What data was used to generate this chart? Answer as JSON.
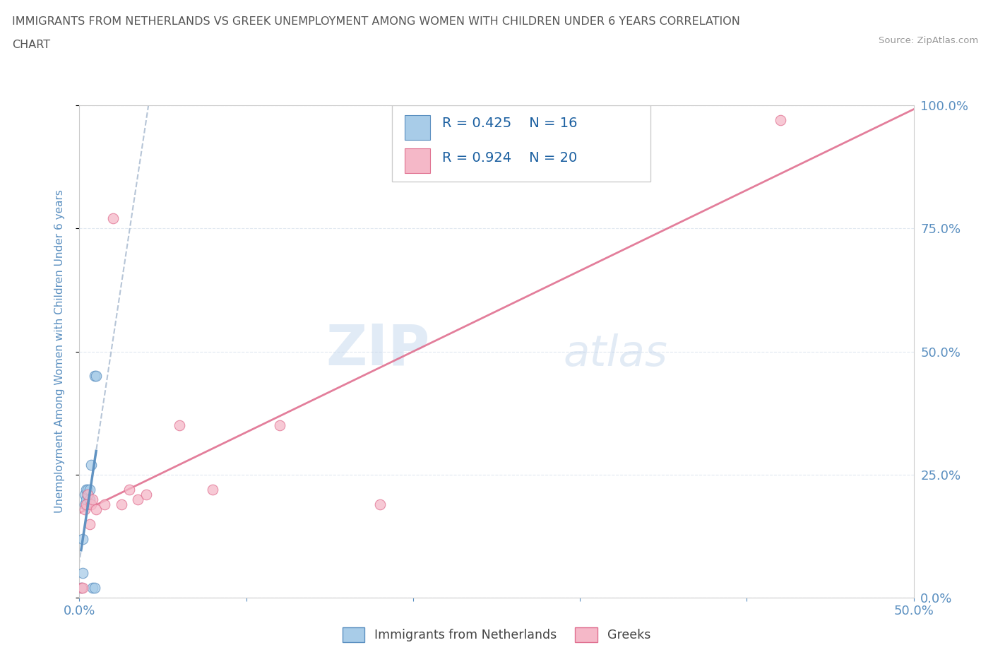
{
  "title_line1": "IMMIGRANTS FROM NETHERLANDS VS GREEK UNEMPLOYMENT AMONG WOMEN WITH CHILDREN UNDER 6 YEARS CORRELATION",
  "title_line2": "CHART",
  "source_text": "Source: ZipAtlas.com",
  "ylabel": "Unemployment Among Women with Children Under 6 years",
  "xlim": [
    0,
    0.5
  ],
  "ylim": [
    0,
    1.0
  ],
  "xticks": [
    0.0,
    0.1,
    0.2,
    0.3,
    0.4,
    0.5
  ],
  "yticks": [
    0.0,
    0.25,
    0.5,
    0.75,
    1.0
  ],
  "xtick_labels": [
    "0.0%",
    "",
    "",
    "",
    "",
    "50.0%"
  ],
  "ytick_labels_right": [
    "0.0%",
    "25.0%",
    "50.0%",
    "75.0%",
    "100.0%"
  ],
  "blue_scatter_x": [
    0.001,
    0.002,
    0.002,
    0.003,
    0.003,
    0.004,
    0.004,
    0.005,
    0.005,
    0.006,
    0.006,
    0.007,
    0.008,
    0.009,
    0.009,
    0.01
  ],
  "blue_scatter_y": [
    0.02,
    0.05,
    0.12,
    0.19,
    0.21,
    0.2,
    0.22,
    0.21,
    0.22,
    0.2,
    0.22,
    0.27,
    0.02,
    0.02,
    0.45,
    0.45
  ],
  "pink_scatter_x": [
    0.001,
    0.002,
    0.003,
    0.004,
    0.005,
    0.006,
    0.007,
    0.008,
    0.01,
    0.015,
    0.02,
    0.025,
    0.03,
    0.035,
    0.04,
    0.06,
    0.08,
    0.12,
    0.18,
    0.42
  ],
  "pink_scatter_y": [
    0.02,
    0.02,
    0.18,
    0.19,
    0.21,
    0.15,
    0.19,
    0.2,
    0.18,
    0.19,
    0.77,
    0.19,
    0.22,
    0.2,
    0.21,
    0.35,
    0.22,
    0.35,
    0.19,
    0.97
  ],
  "blue_color": "#a8cce8",
  "pink_color": "#f5b8c8",
  "blue_edge_color": "#5a8fc0",
  "pink_edge_color": "#e07090",
  "blue_line_color": "#5a8fc0",
  "pink_line_color": "#e07090",
  "R_blue": 0.425,
  "N_blue": 16,
  "R_pink": 0.924,
  "N_pink": 20,
  "watermark_zip": "ZIP",
  "watermark_atlas": "atlas",
  "legend_label_blue": "Immigrants from Netherlands",
  "legend_label_pink": "Greeks",
  "background_color": "#ffffff",
  "axis_label_color": "#5a8fc0",
  "tick_color": "#5a8fc0",
  "grid_color": "#e0e8f0",
  "title_color": "#555555",
  "source_color": "#999999",
  "legend_text_color": "#1a5fa0"
}
